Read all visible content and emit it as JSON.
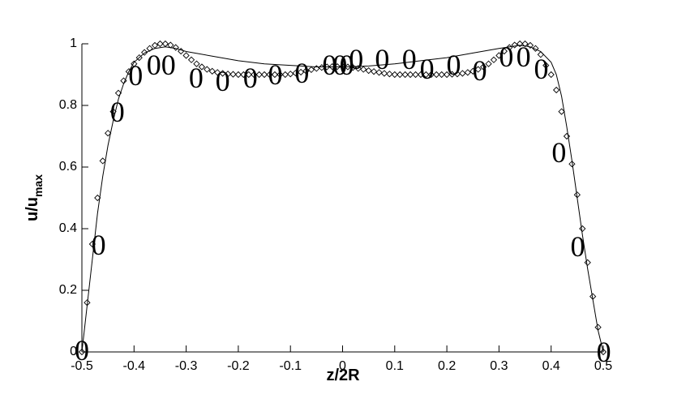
{
  "chart_data": {
    "type": "line",
    "xlabel": "z/2R",
    "ylabel": "u/u",
    "ylabel_sub": "max",
    "xlim": [
      -0.5,
      0.5
    ],
    "ylim": [
      0,
      1
    ],
    "xticks": [
      -0.5,
      -0.4,
      -0.3,
      -0.2,
      -0.1,
      0,
      0.1,
      0.2,
      0.3,
      0.4,
      0.5
    ],
    "yticks": [
      0,
      0.2,
      0.4,
      0.6,
      0.8,
      1
    ],
    "series": [
      {
        "style": "line",
        "color": "#000000",
        "x": [
          -0.5,
          -0.49,
          -0.48,
          -0.47,
          -0.46,
          -0.45,
          -0.44,
          -0.43,
          -0.42,
          -0.41,
          -0.4,
          -0.38,
          -0.36,
          -0.34,
          -0.32,
          -0.3,
          -0.25,
          -0.2,
          -0.15,
          -0.1,
          -0.05,
          0,
          0.05,
          0.1,
          0.15,
          0.2,
          0.25,
          0.3,
          0.34,
          0.36,
          0.38,
          0.4,
          0.41,
          0.42,
          0.43,
          0.44,
          0.45,
          0.46,
          0.47,
          0.48,
          0.49,
          0.5
        ],
        "values": [
          0,
          0.15,
          0.3,
          0.45,
          0.57,
          0.67,
          0.75,
          0.82,
          0.87,
          0.91,
          0.94,
          0.97,
          0.985,
          0.99,
          0.985,
          0.975,
          0.96,
          0.945,
          0.935,
          0.93,
          0.925,
          0.925,
          0.928,
          0.935,
          0.945,
          0.955,
          0.97,
          0.985,
          0.995,
          0.99,
          0.975,
          0.94,
          0.9,
          0.83,
          0.73,
          0.62,
          0.5,
          0.38,
          0.27,
          0.17,
          0.07,
          0
        ]
      },
      {
        "style": "diamond",
        "color": "#000000",
        "x": [
          -0.5,
          -0.49,
          -0.48,
          -0.47,
          -0.46,
          -0.45,
          -0.44,
          -0.43,
          -0.42,
          -0.41,
          -0.4,
          -0.39,
          -0.38,
          -0.37,
          -0.36,
          -0.35,
          -0.34,
          -0.33,
          -0.32,
          -0.31,
          -0.3,
          -0.29,
          -0.28,
          -0.27,
          -0.26,
          -0.25,
          -0.24,
          -0.23,
          -0.22,
          -0.21,
          -0.2,
          -0.19,
          -0.18,
          -0.17,
          -0.16,
          -0.15,
          -0.14,
          -0.13,
          -0.12,
          -0.11,
          -0.1,
          -0.09,
          -0.08,
          -0.07,
          -0.06,
          -0.05,
          -0.04,
          -0.03,
          -0.02,
          -0.01,
          0,
          0.01,
          0.02,
          0.03,
          0.04,
          0.05,
          0.06,
          0.07,
          0.08,
          0.09,
          0.1,
          0.11,
          0.12,
          0.13,
          0.14,
          0.15,
          0.16,
          0.17,
          0.18,
          0.19,
          0.2,
          0.21,
          0.22,
          0.23,
          0.24,
          0.25,
          0.26,
          0.27,
          0.28,
          0.29,
          0.3,
          0.31,
          0.32,
          0.33,
          0.34,
          0.35,
          0.36,
          0.37,
          0.38,
          0.39,
          0.4,
          0.41,
          0.42,
          0.43,
          0.44,
          0.45,
          0.46,
          0.47,
          0.48,
          0.49,
          0.5
        ],
        "values": [
          0,
          0.16,
          0.35,
          0.5,
          0.62,
          0.71,
          0.78,
          0.84,
          0.88,
          0.91,
          0.935,
          0.955,
          0.972,
          0.985,
          0.995,
          1,
          1,
          0.996,
          0.988,
          0.976,
          0.962,
          0.948,
          0.935,
          0.925,
          0.917,
          0.911,
          0.907,
          0.904,
          0.902,
          0.901,
          0.9,
          0.9,
          0.9,
          0.9,
          0.9,
          0.9,
          0.9,
          0.9,
          0.9,
          0.9,
          0.902,
          0.905,
          0.908,
          0.912,
          0.916,
          0.92,
          0.923,
          0.925,
          0.926,
          0.926,
          0.926,
          0.925,
          0.923,
          0.92,
          0.917,
          0.913,
          0.91,
          0.907,
          0.904,
          0.902,
          0.9,
          0.9,
          0.9,
          0.9,
          0.9,
          0.9,
          0.9,
          0.9,
          0.9,
          0.9,
          0.9,
          0.901,
          0.902,
          0.904,
          0.907,
          0.911,
          0.917,
          0.925,
          0.935,
          0.948,
          0.962,
          0.976,
          0.988,
          0.996,
          1,
          1,
          0.995,
          0.985,
          0.965,
          0.93,
          0.9,
          0.85,
          0.78,
          0.7,
          0.61,
          0.51,
          0.4,
          0.29,
          0.18,
          0.08,
          0
        ]
      },
      {
        "style": "symbol",
        "symbol": "0",
        "color": "#000000",
        "x": [
          -0.5,
          -0.468,
          -0.432,
          -0.397,
          -0.362,
          -0.334,
          -0.281,
          -0.23,
          -0.177,
          -0.129,
          -0.078,
          -0.025,
          -0.005,
          0.008,
          0.026,
          0.076,
          0.128,
          0.162,
          0.213,
          0.263,
          0.314,
          0.347,
          0.381,
          0.415,
          0.451,
          0.501
        ],
        "values": [
          0.005,
          0.347,
          0.779,
          0.897,
          0.932,
          0.932,
          0.889,
          0.879,
          0.889,
          0.9,
          0.905,
          0.932,
          0.932,
          0.932,
          0.95,
          0.95,
          0.95,
          0.918,
          0.932,
          0.913,
          0.958,
          0.958,
          0.918,
          0.647,
          0.342,
          0
        ]
      }
    ]
  }
}
